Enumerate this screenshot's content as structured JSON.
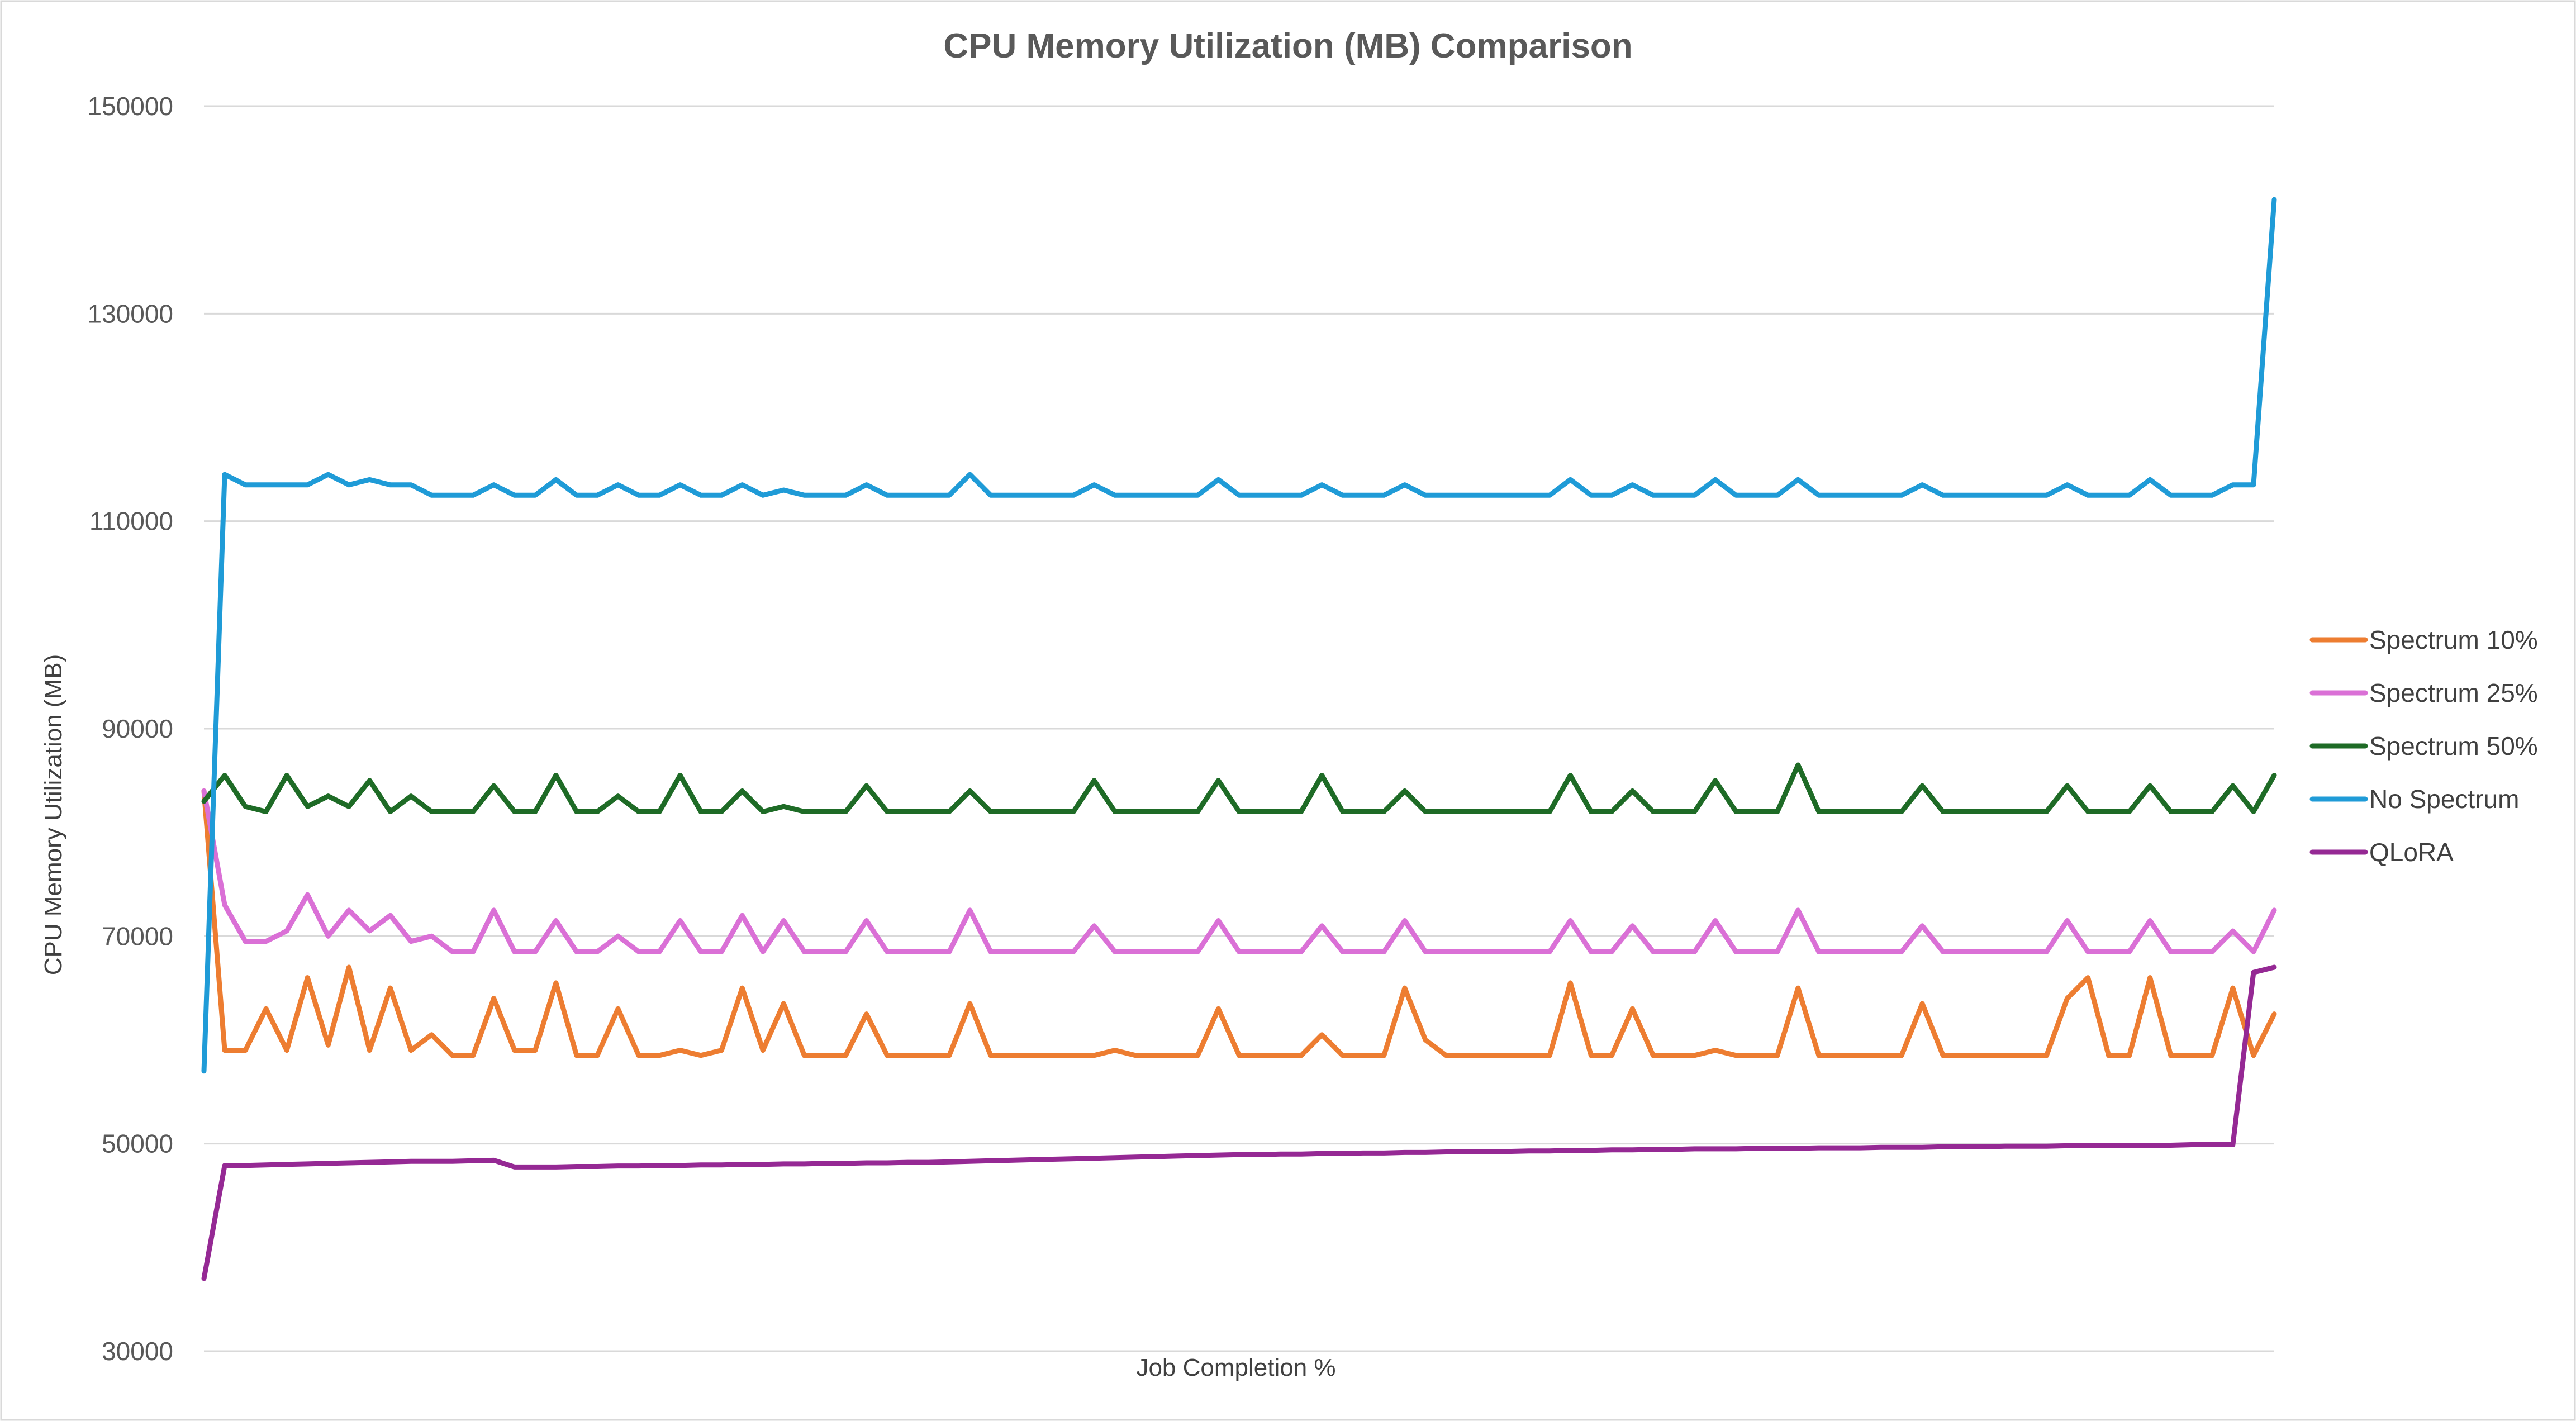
{
  "chart_data": {
    "type": "line",
    "title": "CPU Memory Utilization (MB) Comparison",
    "xlabel": "Job Completion %",
    "ylabel": "CPU Memory Utilization (MB)",
    "ylim": [
      30000,
      150000
    ],
    "yticks": [
      150000,
      130000,
      110000,
      90000,
      70000,
      50000,
      30000
    ],
    "grid": "horizontal",
    "legend_position": "right",
    "x": [
      0,
      1,
      2,
      3,
      4,
      5,
      6,
      7,
      8,
      9,
      10,
      11,
      12,
      13,
      14,
      15,
      16,
      17,
      18,
      19,
      20,
      21,
      22,
      23,
      24,
      25,
      26,
      27,
      28,
      29,
      30,
      31,
      32,
      33,
      34,
      35,
      36,
      37,
      38,
      39,
      40,
      41,
      42,
      43,
      44,
      45,
      46,
      47,
      48,
      49,
      50,
      51,
      52,
      53,
      54,
      55,
      56,
      57,
      58,
      59,
      60,
      61,
      62,
      63,
      64,
      65,
      66,
      67,
      68,
      69,
      70,
      71,
      72,
      73,
      74,
      75,
      76,
      77,
      78,
      79,
      80,
      81,
      82,
      83,
      84,
      85,
      86,
      87,
      88,
      89,
      90,
      91,
      92,
      93,
      94,
      95,
      96,
      97,
      98,
      99,
      100
    ],
    "series": [
      {
        "name": "Spectrum 10%",
        "color": "#ED7D31",
        "values": [
          84000,
          59000,
          59000,
          63000,
          59000,
          66000,
          59500,
          67000,
          59000,
          65000,
          59000,
          60500,
          58500,
          58500,
          64000,
          59000,
          59000,
          65500,
          58500,
          58500,
          63000,
          58500,
          58500,
          59000,
          58500,
          59000,
          65000,
          59000,
          63500,
          58500,
          58500,
          58500,
          62500,
          58500,
          58500,
          58500,
          58500,
          63500,
          58500,
          58500,
          58500,
          58500,
          58500,
          58500,
          59000,
          58500,
          58500,
          58500,
          58500,
          63000,
          58500,
          58500,
          58500,
          58500,
          60500,
          58500,
          58500,
          58500,
          65000,
          60000,
          58500,
          58500,
          58500,
          58500,
          58500,
          58500,
          65500,
          58500,
          58500,
          63000,
          58500,
          58500,
          58500,
          59000,
          58500,
          58500,
          58500,
          65000,
          58500,
          58500,
          58500,
          58500,
          58500,
          63500,
          58500,
          58500,
          58500,
          58500,
          58500,
          58500,
          64000,
          66000,
          58500,
          58500,
          66000,
          58500,
          58500,
          58500,
          65000,
          58500,
          62500
        ]
      },
      {
        "name": "Spectrum 25%",
        "color": "#DA70D6",
        "values": [
          84000,
          73000,
          69500,
          69500,
          70500,
          74000,
          70000,
          72500,
          70500,
          72000,
          69500,
          70000,
          68500,
          68500,
          72500,
          68500,
          68500,
          71500,
          68500,
          68500,
          70000,
          68500,
          68500,
          71500,
          68500,
          68500,
          72000,
          68500,
          71500,
          68500,
          68500,
          68500,
          71500,
          68500,
          68500,
          68500,
          68500,
          72500,
          68500,
          68500,
          68500,
          68500,
          68500,
          71000,
          68500,
          68500,
          68500,
          68500,
          68500,
          71500,
          68500,
          68500,
          68500,
          68500,
          71000,
          68500,
          68500,
          68500,
          71500,
          68500,
          68500,
          68500,
          68500,
          68500,
          68500,
          68500,
          71500,
          68500,
          68500,
          71000,
          68500,
          68500,
          68500,
          71500,
          68500,
          68500,
          68500,
          72500,
          68500,
          68500,
          68500,
          68500,
          68500,
          71000,
          68500,
          68500,
          68500,
          68500,
          68500,
          68500,
          71500,
          68500,
          68500,
          68500,
          71500,
          68500,
          68500,
          68500,
          70500,
          68500,
          72500
        ]
      },
      {
        "name": "Spectrum 50%",
        "color": "#1E6B26",
        "values": [
          83000,
          85500,
          82500,
          82000,
          85500,
          82500,
          83500,
          82500,
          85000,
          82000,
          83500,
          82000,
          82000,
          82000,
          84500,
          82000,
          82000,
          85500,
          82000,
          82000,
          83500,
          82000,
          82000,
          85500,
          82000,
          82000,
          84000,
          82000,
          82500,
          82000,
          82000,
          82000,
          84500,
          82000,
          82000,
          82000,
          82000,
          84000,
          82000,
          82000,
          82000,
          82000,
          82000,
          85000,
          82000,
          82000,
          82000,
          82000,
          82000,
          85000,
          82000,
          82000,
          82000,
          82000,
          85500,
          82000,
          82000,
          82000,
          84000,
          82000,
          82000,
          82000,
          82000,
          82000,
          82000,
          82000,
          85500,
          82000,
          82000,
          84000,
          82000,
          82000,
          82000,
          85000,
          82000,
          82000,
          82000,
          86500,
          82000,
          82000,
          82000,
          82000,
          82000,
          84500,
          82000,
          82000,
          82000,
          82000,
          82000,
          82000,
          84500,
          82000,
          82000,
          82000,
          84500,
          82000,
          82000,
          82000,
          84500,
          82000,
          85500
        ]
      },
      {
        "name": "No Spectrum",
        "color": "#1F9BD7",
        "values": [
          57000,
          114500,
          113500,
          113500,
          113500,
          113500,
          114500,
          113500,
          114000,
          113500,
          113500,
          112500,
          112500,
          112500,
          113500,
          112500,
          112500,
          114000,
          112500,
          112500,
          113500,
          112500,
          112500,
          113500,
          112500,
          112500,
          113500,
          112500,
          113000,
          112500,
          112500,
          112500,
          113500,
          112500,
          112500,
          112500,
          112500,
          114500,
          112500,
          112500,
          112500,
          112500,
          112500,
          113500,
          112500,
          112500,
          112500,
          112500,
          112500,
          114000,
          112500,
          112500,
          112500,
          112500,
          113500,
          112500,
          112500,
          112500,
          113500,
          112500,
          112500,
          112500,
          112500,
          112500,
          112500,
          112500,
          114000,
          112500,
          112500,
          113500,
          112500,
          112500,
          112500,
          114000,
          112500,
          112500,
          112500,
          114000,
          112500,
          112500,
          112500,
          112500,
          112500,
          113500,
          112500,
          112500,
          112500,
          112500,
          112500,
          112500,
          113500,
          112500,
          112500,
          112500,
          114000,
          112500,
          112500,
          112500,
          113500,
          113500,
          141000
        ]
      },
      {
        "name": "QLoRA",
        "color": "#952994",
        "values": [
          37000,
          47900,
          47900,
          47950,
          48000,
          48050,
          48100,
          48150,
          48200,
          48250,
          48300,
          48300,
          48300,
          48350,
          48400,
          47750,
          47750,
          47750,
          47800,
          47800,
          47850,
          47850,
          47900,
          47900,
          47950,
          47950,
          48000,
          48000,
          48050,
          48050,
          48100,
          48100,
          48150,
          48150,
          48200,
          48200,
          48250,
          48300,
          48350,
          48400,
          48450,
          48500,
          48550,
          48600,
          48650,
          48700,
          48750,
          48800,
          48850,
          48900,
          48950,
          48950,
          49000,
          49000,
          49050,
          49050,
          49100,
          49100,
          49150,
          49150,
          49200,
          49200,
          49250,
          49250,
          49300,
          49300,
          49350,
          49350,
          49400,
          49400,
          49450,
          49450,
          49500,
          49500,
          49500,
          49550,
          49550,
          49550,
          49600,
          49600,
          49600,
          49650,
          49650,
          49650,
          49700,
          49700,
          49700,
          49750,
          49750,
          49750,
          49800,
          49800,
          49800,
          49850,
          49850,
          49850,
          49900,
          49900,
          49900,
          66500,
          67000
        ]
      }
    ]
  }
}
